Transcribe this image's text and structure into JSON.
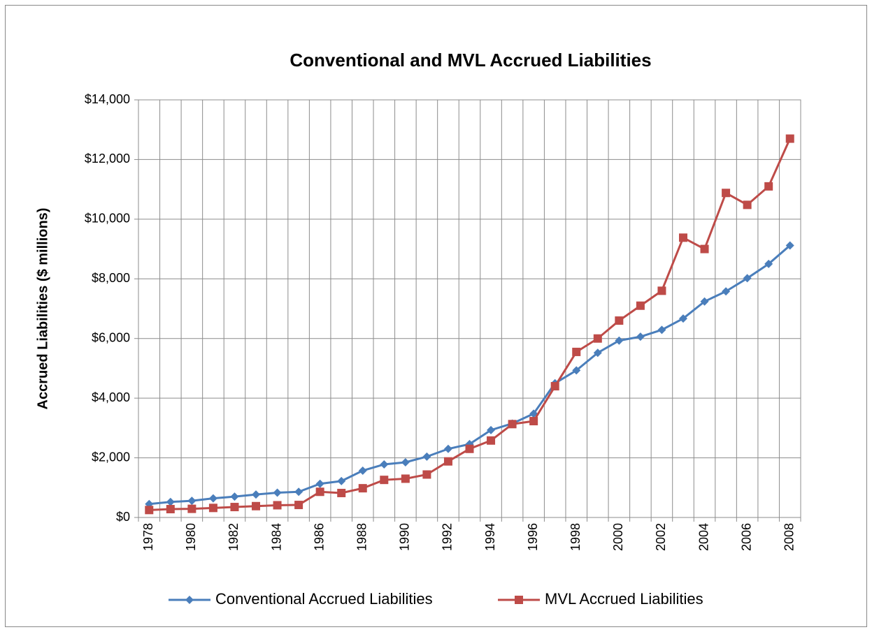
{
  "chart_data": {
    "type": "line",
    "title": "Conventional and MVL Accrued Liabilities",
    "y_label": "Accrued Liabilities ($ millions)",
    "categories": [
      "1978",
      null,
      "1980",
      null,
      "1982",
      null,
      "1984",
      null,
      "1986",
      null,
      "1988",
      null,
      "1990",
      null,
      "1992",
      null,
      "1994",
      null,
      "1996",
      null,
      "1998",
      null,
      "2000",
      null,
      "2002",
      null,
      "2004",
      null,
      "2006",
      null,
      "2008"
    ],
    "series": [
      {
        "name": "Conventional Accrued Liabilities",
        "color": "#4a7ebb",
        "marker": "diamond",
        "values": [
          450,
          520,
          560,
          640,
          700,
          770,
          830,
          860,
          1130,
          1220,
          1570,
          1780,
          1850,
          2040,
          2300,
          2460,
          2930,
          3150,
          3480,
          4500,
          4930,
          5520,
          5930,
          6060,
          6290,
          6670,
          7240,
          7580,
          8020,
          8500,
          9120
        ]
      },
      {
        "name": "MVL Accrued Liabilities",
        "color": "#be4b48",
        "marker": "square",
        "values": [
          250,
          280,
          290,
          320,
          350,
          380,
          410,
          420,
          860,
          820,
          980,
          1260,
          1300,
          1440,
          1880,
          2300,
          2580,
          3130,
          3230,
          4400,
          5550,
          6000,
          6600,
          7100,
          7600,
          9380,
          9000,
          10880,
          10480,
          11100,
          12700
        ]
      }
    ],
    "ylim": [
      0,
      14000
    ],
    "yticks": [
      {
        "value": 0,
        "label": "$0"
      },
      {
        "value": 2000,
        "label": "$2,000"
      },
      {
        "value": 4000,
        "label": "$4,000"
      },
      {
        "value": 6000,
        "label": "$6,000"
      },
      {
        "value": 8000,
        "label": "$8,000"
      },
      {
        "value": 10000,
        "label": "$10,000"
      },
      {
        "value": 12000,
        "label": "$12,000"
      },
      {
        "value": 14000,
        "label": "$14,000"
      }
    ],
    "grid": true,
    "legend": "bottom"
  }
}
